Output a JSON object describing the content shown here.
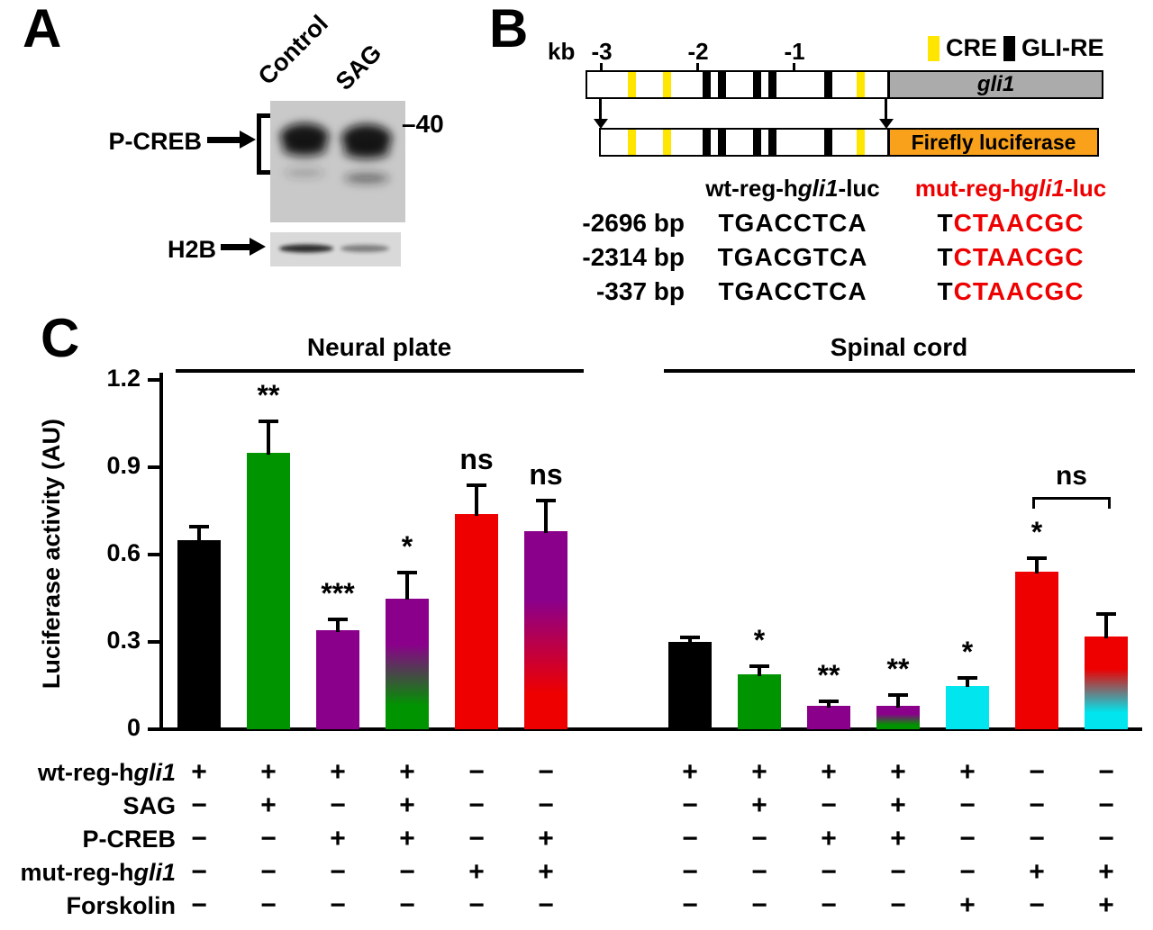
{
  "panel_a": {
    "label": "A",
    "lane_labels": [
      "Control",
      "SAG"
    ],
    "row_labels": [
      "P-CREB",
      "H2B"
    ],
    "mw_marker": "–40"
  },
  "panel_b": {
    "label": "B",
    "legend": [
      {
        "label": "CRE",
        "color": "#FFE600"
      },
      {
        "label": "GLI-RE",
        "color": "#000000"
      }
    ],
    "scale_unit": "kb",
    "scale_ticks": [
      "-3",
      "-2",
      "-1"
    ],
    "gene_label": "gli1",
    "gene_region_color": "#ABABAB",
    "reporter_label": "Firefly luciferase",
    "reporter_color": "#F9A11B",
    "mut_text_color": "#EE0000",
    "wt_header": {
      "pre": "wt-reg-h",
      "italic": "gli1",
      "post": "-luc"
    },
    "mut_header": {
      "pre": "mut-reg-h",
      "italic": "gli1",
      "post": "-luc"
    },
    "marks": [
      {
        "x": 45,
        "color": "#FFE600"
      },
      {
        "x": 84,
        "color": "#FFE600"
      },
      {
        "x": 128,
        "color": "#000000"
      },
      {
        "x": 145,
        "color": "#000000"
      },
      {
        "x": 184,
        "color": "#000000"
      },
      {
        "x": 201,
        "color": "#000000"
      },
      {
        "x": 263,
        "color": "#000000"
      },
      {
        "x": 299,
        "color": "#FFE600"
      }
    ],
    "sequence_rows": [
      {
        "pos": "-2696 bp",
        "wt": "TGACCTCA",
        "mut_black": "T",
        "mut_red": "CTAACGC"
      },
      {
        "pos": "-2314 bp",
        "wt": "TGACGTCA",
        "mut_black": "T",
        "mut_red": "CTAACGC"
      },
      {
        "pos": "-337 bp",
        "wt": "TGACCTCA",
        "mut_black": "T",
        "mut_red": "CTAACGC"
      }
    ]
  },
  "panel_c": {
    "label": "C"
  },
  "chart_data": {
    "type": "bar",
    "title": "",
    "ylabel": "Luciferase activity (AU)",
    "ylim": [
      0,
      1.2
    ],
    "yticks": [
      0,
      0.3,
      0.6,
      0.9,
      1.2
    ],
    "grid": false,
    "groups": [
      {
        "label": "Neural plate",
        "bars": [
          {
            "value": 0.65,
            "error": 0.05,
            "color": "#000000",
            "sig": ""
          },
          {
            "value": 0.95,
            "error": 0.11,
            "color": "#009400",
            "sig": "**"
          },
          {
            "value": 0.34,
            "error": 0.04,
            "color": "#8B008B",
            "sig": "***"
          },
          {
            "value": 0.45,
            "error": 0.09,
            "color": [
              "#8B008B",
              "#009400"
            ],
            "sig": "*"
          },
          {
            "value": 0.74,
            "error": 0.1,
            "color": "#EE0000",
            "sig": "ns"
          },
          {
            "value": 0.68,
            "error": 0.11,
            "color": [
              "#8B008B",
              "#EE0000"
            ],
            "sig": "ns"
          }
        ]
      },
      {
        "label": "Spinal cord",
        "bars": [
          {
            "value": 0.3,
            "error": 0.02,
            "color": "#000000",
            "sig": ""
          },
          {
            "value": 0.19,
            "error": 0.03,
            "color": "#009400",
            "sig": "*"
          },
          {
            "value": 0.08,
            "error": 0.02,
            "color": "#8B008B",
            "sig": "**"
          },
          {
            "value": 0.08,
            "error": 0.04,
            "color": [
              "#8B008B",
              "#009400"
            ],
            "sig": "**"
          },
          {
            "value": 0.15,
            "error": 0.03,
            "color": "#00E5EE",
            "sig": "*"
          },
          {
            "value": 0.54,
            "error": 0.05,
            "color": "#EE0000",
            "sig": "*"
          },
          {
            "value": 0.32,
            "error": 0.08,
            "color": [
              "#EE0000",
              "#00E5EE"
            ],
            "sig": ""
          }
        ],
        "ns_bracket": {
          "from": 5,
          "to": 6,
          "label": "ns"
        }
      }
    ],
    "condition_rows": [
      {
        "label_pre": "wt-reg-h",
        "label_italic": "gli1",
        "label_post": "",
        "np": [
          "+",
          "+",
          "+",
          "+",
          "−",
          "−"
        ],
        "sc": [
          "+",
          "+",
          "+",
          "+",
          "+",
          "−",
          "−"
        ]
      },
      {
        "label_pre": "SAG",
        "label_italic": "",
        "label_post": "",
        "np": [
          "−",
          "+",
          "−",
          "+",
          "−",
          "−"
        ],
        "sc": [
          "−",
          "+",
          "−",
          "+",
          "−",
          "−",
          "−"
        ]
      },
      {
        "label_pre": "P-CREB",
        "label_italic": "",
        "label_post": "",
        "np": [
          "−",
          "−",
          "+",
          "+",
          "−",
          "+"
        ],
        "sc": [
          "−",
          "−",
          "+",
          "+",
          "−",
          "−",
          "−"
        ]
      },
      {
        "label_pre": "mut-reg-h",
        "label_italic": "gli1",
        "label_post": "",
        "np": [
          "−",
          "−",
          "−",
          "−",
          "+",
          "+"
        ],
        "sc": [
          "−",
          "−",
          "−",
          "−",
          "−",
          "+",
          "+"
        ]
      },
      {
        "label_pre": "Forskolin",
        "label_italic": "",
        "label_post": "",
        "np": [
          "−",
          "−",
          "−",
          "−",
          "−",
          "−"
        ],
        "sc": [
          "−",
          "−",
          "−",
          "−",
          "+",
          "−",
          "+"
        ]
      }
    ]
  }
}
